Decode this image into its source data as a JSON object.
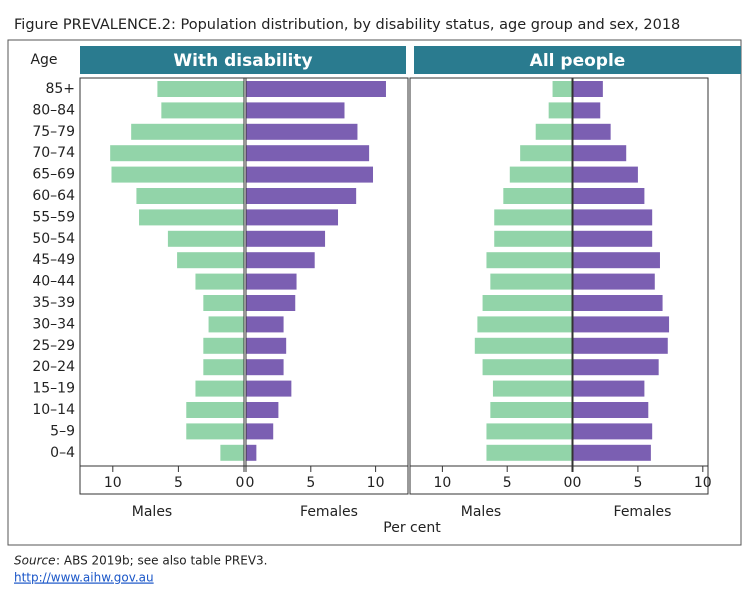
{
  "title": "Figure PREVALENCE.2: Population distribution, by disability status, age group and sex, 2018",
  "age_label": "Age",
  "x_label": "Per cent",
  "source": {
    "label": "Source",
    "text": ": ABS 2019b; see also table PREV3."
  },
  "link": "http://www.aihw.gov.au",
  "chart_data": [
    {
      "type": "bar",
      "orientation": "horizontal",
      "title": "With disability",
      "categories": [
        "85+",
        "80–84",
        "75–79",
        "70–74",
        "65–69",
        "60–64",
        "55–59",
        "50–54",
        "45–49",
        "40–44",
        "35–39",
        "30–34",
        "25–29",
        "20–24",
        "15–19",
        "10–14",
        "5–9",
        "0–4"
      ],
      "series": [
        {
          "name": "Males",
          "color": "#92d4a9",
          "xlim": [
            12.5,
            0
          ],
          "xticks": [
            10,
            5,
            0
          ],
          "values": [
            6.6,
            6.3,
            8.6,
            10.2,
            10.1,
            8.2,
            8.0,
            5.8,
            5.1,
            3.7,
            3.1,
            2.7,
            3.1,
            3.1,
            3.7,
            4.4,
            4.4,
            1.8
          ]
        },
        {
          "name": "Females",
          "color": "#7b5fb2",
          "xlim": [
            0,
            12.5
          ],
          "xticks": [
            0,
            5,
            10
          ],
          "values": [
            10.8,
            7.6,
            8.6,
            9.5,
            9.8,
            8.5,
            7.1,
            6.1,
            5.3,
            3.9,
            3.8,
            2.9,
            3.1,
            2.9,
            3.5,
            2.5,
            2.1,
            0.8
          ]
        }
      ]
    },
    {
      "type": "bar",
      "orientation": "horizontal",
      "title": "All people",
      "series": [
        {
          "name": "Males",
          "color": "#92d4a9",
          "xlim": [
            12.5,
            0
          ],
          "xticks": [
            10,
            5,
            0
          ],
          "values": [
            1.5,
            1.8,
            2.8,
            4.0,
            4.8,
            5.3,
            6.0,
            6.0,
            6.6,
            6.3,
            6.9,
            7.3,
            7.5,
            6.9,
            6.1,
            6.3,
            6.6,
            6.6
          ]
        },
        {
          "name": "Females",
          "color": "#7b5fb2",
          "xlim": [
            0,
            10.4
          ],
          "xticks": [
            0,
            5,
            10
          ],
          "values": [
            2.3,
            2.1,
            2.9,
            4.1,
            5.0,
            5.5,
            6.1,
            6.1,
            6.7,
            6.3,
            6.9,
            7.4,
            7.3,
            6.6,
            5.5,
            5.8,
            6.1,
            6.0
          ]
        }
      ]
    }
  ]
}
